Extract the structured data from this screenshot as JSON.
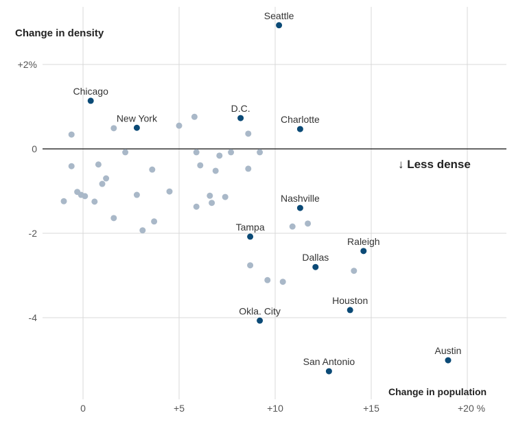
{
  "chart_data": {
    "type": "scatter",
    "xlabel": "Change in population",
    "ylabel": "Change in density",
    "annotation": "↓ Less dense",
    "xlim": [
      -2,
      22
    ],
    "ylim": [
      -5.6,
      3.1
    ],
    "x_ticks": [
      {
        "v": 0,
        "label": "0"
      },
      {
        "v": 5,
        "label": "+5"
      },
      {
        "v": 10,
        "label": "+10"
      },
      {
        "v": 15,
        "label": "+15"
      },
      {
        "v": 20,
        "label": "+20 %"
      }
    ],
    "y_ticks": [
      {
        "v": 2,
        "label": "+2%"
      },
      {
        "v": 0,
        "label": "0"
      },
      {
        "v": -2,
        "label": "-2"
      },
      {
        "v": -4,
        "label": "-4"
      }
    ],
    "grid": true,
    "colors": {
      "highlight": "#0b4a76",
      "other": "#a9b8c8",
      "zero_line": "#333333",
      "grid": "#d9d9d9"
    },
    "labeled_points": [
      {
        "name": "Seattle",
        "x": 10.2,
        "y": 2.93
      },
      {
        "name": "Chicago",
        "x": 0.4,
        "y": 1.14
      },
      {
        "name": "New York",
        "x": 2.8,
        "y": 0.5
      },
      {
        "name": "D.C.",
        "x": 8.2,
        "y": 0.73
      },
      {
        "name": "Charlotte",
        "x": 11.3,
        "y": 0.47
      },
      {
        "name": "Nashville",
        "x": 11.3,
        "y": -1.4
      },
      {
        "name": "Tampa",
        "x": 8.7,
        "y": -2.08
      },
      {
        "name": "Raleigh",
        "x": 14.6,
        "y": -2.42
      },
      {
        "name": "Dallas",
        "x": 12.1,
        "y": -2.8
      },
      {
        "name": "Houston",
        "x": 13.9,
        "y": -3.82
      },
      {
        "name": "Okla. City",
        "x": 9.2,
        "y": -4.07
      },
      {
        "name": "Austin",
        "x": 19.0,
        "y": -5.01
      },
      {
        "name": "San Antonio",
        "x": 12.8,
        "y": -5.27
      }
    ],
    "other_points": [
      [
        -0.6,
        0.34
      ],
      [
        1.6,
        0.49
      ],
      [
        5.0,
        0.55
      ],
      [
        5.8,
        0.76
      ],
      [
        8.6,
        0.36
      ],
      [
        2.2,
        -0.08
      ],
      [
        5.9,
        -0.08
      ],
      [
        7.1,
        -0.16
      ],
      [
        7.7,
        -0.08
      ],
      [
        9.2,
        -0.08
      ],
      [
        -0.6,
        -0.41
      ],
      [
        0.8,
        -0.37
      ],
      [
        3.6,
        -0.49
      ],
      [
        6.1,
        -0.39
      ],
      [
        6.9,
        -0.52
      ],
      [
        8.6,
        -0.47
      ],
      [
        1.2,
        -0.7
      ],
      [
        1.0,
        -0.83
      ],
      [
        4.5,
        -1.01
      ],
      [
        -0.3,
        -1.02
      ],
      [
        -0.1,
        -1.09
      ],
      [
        0.1,
        -1.12
      ],
      [
        -1.0,
        -1.24
      ],
      [
        0.6,
        -1.25
      ],
      [
        2.8,
        -1.09
      ],
      [
        6.6,
        -1.11
      ],
      [
        7.4,
        -1.14
      ],
      [
        6.7,
        -1.28
      ],
      [
        5.9,
        -1.37
      ],
      [
        1.6,
        -1.64
      ],
      [
        3.7,
        -1.72
      ],
      [
        3.1,
        -1.93
      ],
      [
        10.9,
        -1.84
      ],
      [
        11.7,
        -1.77
      ],
      [
        8.7,
        -2.76
      ],
      [
        9.6,
        -3.11
      ],
      [
        10.4,
        -3.15
      ],
      [
        14.1,
        -2.89
      ]
    ]
  }
}
